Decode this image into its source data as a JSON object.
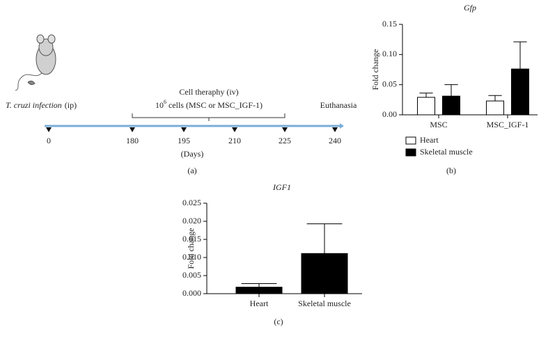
{
  "timeline": {
    "infection_label": "T. cruzi infection",
    "infection_route": "(ip)",
    "therapy_label": "Cell theraphy (iv)",
    "cells_base": "10",
    "cells_exp": "6",
    "cells_text": "cells (MSC or MSC_IGF-1)",
    "end_label": "Euthanasia",
    "days": [
      "0",
      "180",
      "195",
      "210",
      "225",
      "240"
    ],
    "unit": "(Days)"
  },
  "panel_labels": [
    "(a)",
    "(b)",
    "(c)"
  ],
  "chart_data": [
    {
      "type": "bar",
      "title": "Gfp",
      "y_label": "Fold change",
      "categories": [
        "MSC",
        "MSC_IGF-1"
      ],
      "series": [
        {
          "name": "Heart",
          "color": "#ffffff",
          "values": [
            0.029,
            0.023
          ],
          "errors": [
            0.007,
            0.009
          ]
        },
        {
          "name": "Skeletal muscle",
          "color": "#000000",
          "values": [
            0.031,
            0.076
          ],
          "errors": [
            0.019,
            0.045
          ]
        }
      ],
      "ylim": [
        0,
        0.15
      ],
      "yticks": [
        {
          "value": 0,
          "label": "0.00"
        },
        {
          "value": 0.05,
          "label": "0.05"
        },
        {
          "value": 0.1,
          "label": "0.10"
        },
        {
          "value": 0.15,
          "label": "0.15"
        }
      ]
    },
    {
      "type": "bar",
      "title": "IGF1",
      "y_label": "Fold change",
      "categories": [
        "Heart",
        "Skeletal muscle"
      ],
      "series": [
        {
          "color": "#000000",
          "values": [
            0.0018,
            0.0111
          ],
          "errors": [
            0.001,
            0.0082
          ]
        }
      ],
      "ylim": [
        0,
        0.025
      ],
      "yticks": [
        {
          "value": 0,
          "label": "0.000"
        },
        {
          "value": 0.005,
          "label": "0.005"
        },
        {
          "value": 0.01,
          "label": "0.010"
        },
        {
          "value": 0.015,
          "label": "0.015"
        },
        {
          "value": 0.02,
          "label": "0.020"
        },
        {
          "value": 0.025,
          "label": "0.025"
        }
      ]
    }
  ]
}
